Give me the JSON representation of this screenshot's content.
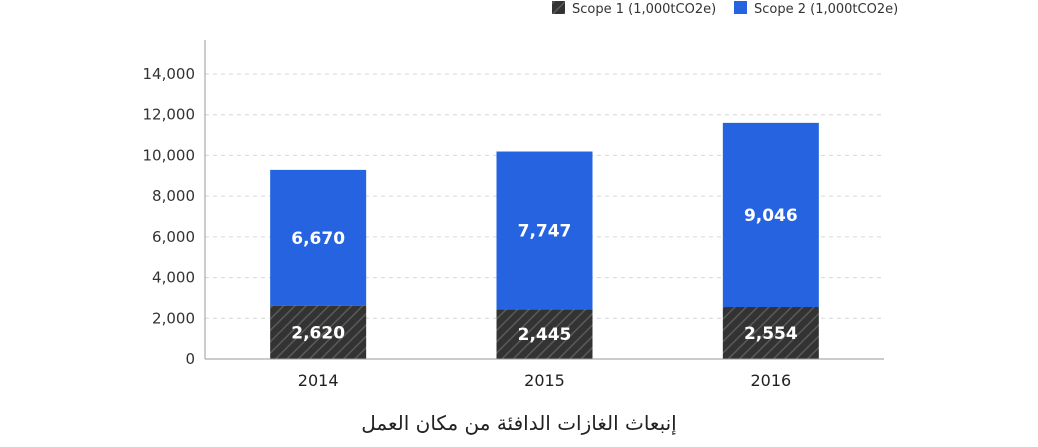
{
  "chart_data": {
    "type": "bar",
    "stacked": true,
    "title": "إنبعاث الغازات الدافئة من مكان العمل",
    "xlabel": "",
    "ylabel": "",
    "categories": [
      "2014",
      "2015",
      "2016"
    ],
    "series": [
      {
        "name": "Scope 1 (1,000tCO2e)",
        "values": [
          2620,
          2445,
          2554
        ],
        "color": "#333333",
        "pattern": "hatched"
      },
      {
        "name": "Scope 2 (1,000tCO2e)",
        "values": [
          6670,
          7747,
          9046
        ],
        "color": "#2563e0"
      }
    ],
    "ylim": [
      0,
      14000
    ],
    "yticks": [
      0,
      2000,
      4000,
      6000,
      8000,
      10000,
      12000,
      14000
    ],
    "ytick_labels": [
      "0",
      "2,000",
      "4,000",
      "6,000",
      "8,000",
      "10,000",
      "12,000",
      "14,000"
    ],
    "data_labels": [
      [
        "2,620",
        "2,445",
        "2,554"
      ],
      [
        "6,670",
        "7,747",
        "9,046"
      ]
    ],
    "grid": true,
    "legend_position": "top-right"
  }
}
